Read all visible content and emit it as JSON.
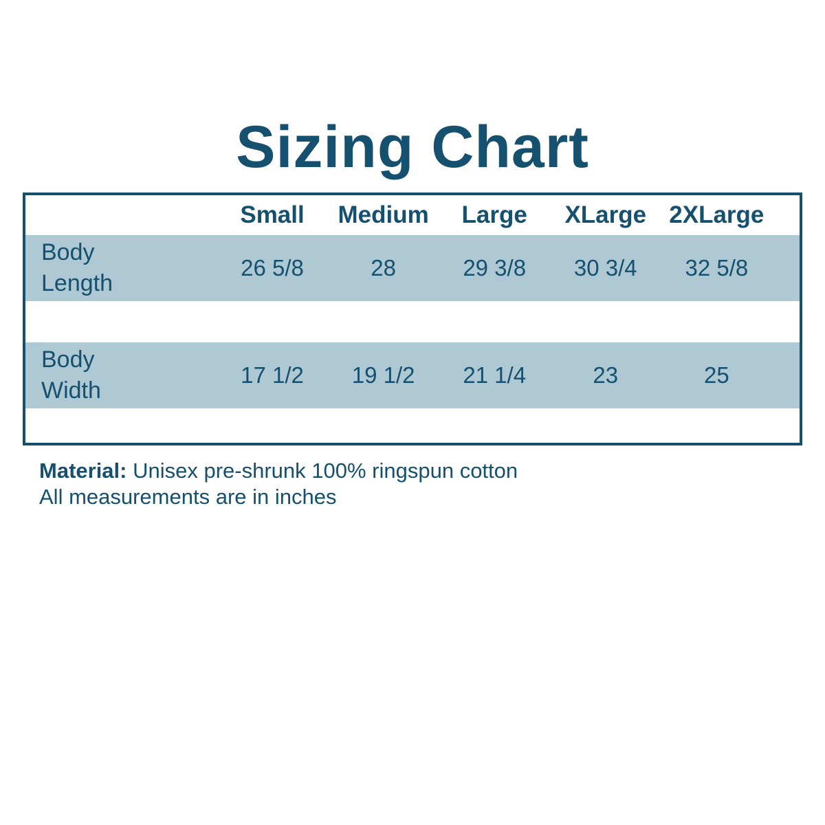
{
  "title": {
    "text": "Sizing Chart"
  },
  "colors": {
    "text_dark_blue": "#15506e",
    "table_border": "#15506e",
    "row_light_blue": "#aec8d4",
    "background": "#ffffff"
  },
  "chart_data": {
    "type": "table",
    "title": "Sizing Chart",
    "columns": [
      "Small",
      "Medium",
      "Large",
      "XLarge",
      "2XLarge"
    ],
    "rows": [
      {
        "label": "Body Length",
        "values": [
          "26 5/8",
          "28",
          "29 3/8",
          "30 3/4",
          "32 5/8"
        ]
      },
      {
        "label": "Body Width",
        "values": [
          "17 1/2",
          "19 1/2",
          "21 1/4",
          "23",
          "25"
        ]
      }
    ],
    "units": "inches",
    "grid": "off",
    "legend_position": "none",
    "layout": "outer dark-blue border; white header band; light-blue data bands separated by white spacer bands"
  },
  "footer": {
    "material_label": "Material:",
    "material_value": "Unisex pre-shrunk 100% ringspun cotton",
    "note": "All measurements are in inches"
  }
}
